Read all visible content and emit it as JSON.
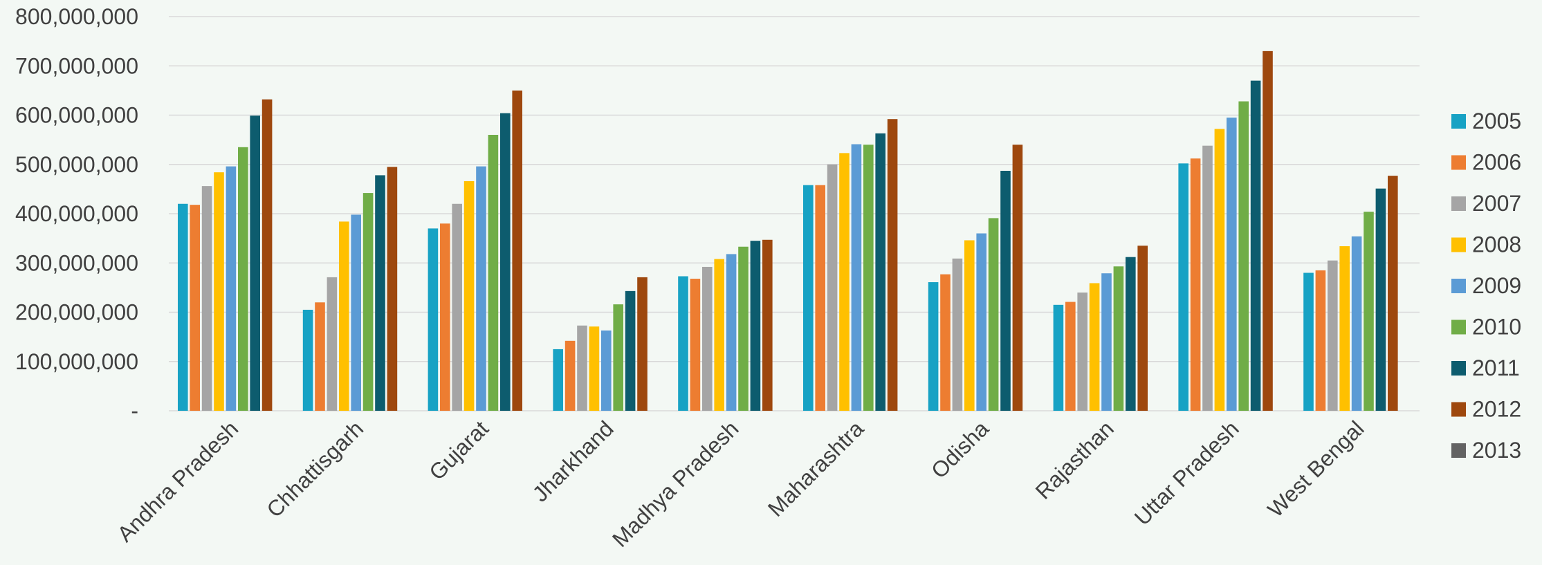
{
  "chart_data": {
    "type": "bar",
    "title": "",
    "xlabel": "",
    "ylabel": "",
    "ylim": [
      0,
      800000000
    ],
    "y_ticks": [
      0,
      100000000,
      200000000,
      300000000,
      400000000,
      500000000,
      600000000,
      700000000,
      800000000
    ],
    "y_tick_labels": [
      "-",
      "100,000,000",
      "200,000,000",
      "300,000,000",
      "400,000,000",
      "500,000,000",
      "600,000,000",
      "700,000,000",
      "800,000,000"
    ],
    "grid": true,
    "legend_position": "right",
    "categories": [
      "Andhra Pradesh",
      "Chhattisgarh",
      "Gujarat",
      "Jharkhand",
      "Madhya Pradesh",
      "Maharashtra",
      "Odisha",
      "Rajasthan",
      "Uttar Pradesh",
      "West Bengal"
    ],
    "series": [
      {
        "name": "2005",
        "color": "#17a2c4",
        "values": [
          420000000,
          205000000,
          370000000,
          125000000,
          273000000,
          458000000,
          261000000,
          215000000,
          502000000,
          280000000
        ]
      },
      {
        "name": "2006",
        "color": "#ed7d31",
        "values": [
          418000000,
          220000000,
          380000000,
          142000000,
          268000000,
          458000000,
          277000000,
          221000000,
          512000000,
          285000000
        ]
      },
      {
        "name": "2007",
        "color": "#a5a5a5",
        "values": [
          456000000,
          271000000,
          420000000,
          173000000,
          292000000,
          500000000,
          309000000,
          240000000,
          538000000,
          305000000
        ]
      },
      {
        "name": "2008",
        "color": "#ffc000",
        "values": [
          484000000,
          384000000,
          466000000,
          171000000,
          308000000,
          523000000,
          346000000,
          259000000,
          572000000,
          334000000
        ]
      },
      {
        "name": "2009",
        "color": "#5b9bd5",
        "values": [
          496000000,
          398000000,
          496000000,
          163000000,
          318000000,
          541000000,
          360000000,
          279000000,
          595000000,
          354000000
        ]
      },
      {
        "name": "2010",
        "color": "#70ad47",
        "values": [
          535000000,
          442000000,
          560000000,
          216000000,
          333000000,
          540000000,
          391000000,
          293000000,
          628000000,
          404000000
        ]
      },
      {
        "name": "2011",
        "color": "#0d5c6e",
        "values": [
          599000000,
          478000000,
          604000000,
          243000000,
          345000000,
          563000000,
          487000000,
          312000000,
          670000000,
          451000000
        ]
      },
      {
        "name": "2012",
        "color": "#9e480e",
        "values": [
          632000000,
          495000000,
          650000000,
          271000000,
          347000000,
          592000000,
          540000000,
          335000000,
          730000000,
          477000000
        ]
      },
      {
        "name": "2013",
        "color": "#636363",
        "values": [
          0,
          0,
          0,
          0,
          0,
          0,
          0,
          0,
          0,
          0
        ]
      }
    ]
  }
}
